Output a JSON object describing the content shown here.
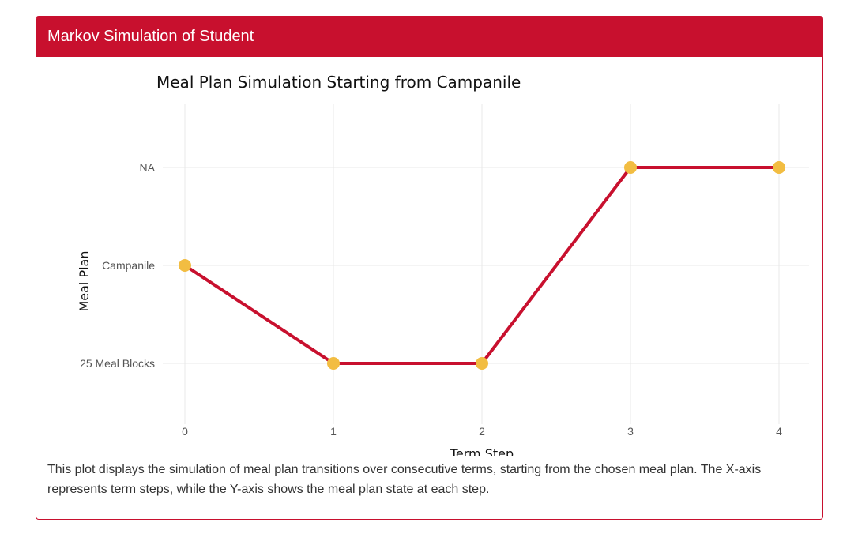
{
  "card": {
    "title": "Markov Simulation of Student"
  },
  "colors": {
    "header": "#c8102e",
    "line": "#c8102e",
    "marker": "#f2bd42",
    "grid": "#e8e8e8"
  },
  "chart_data": {
    "type": "line",
    "title": "Meal Plan Simulation Starting from Campanile",
    "xlabel": "Term Step",
    "ylabel": "Meal Plan",
    "x": [
      0,
      1,
      2,
      3,
      4
    ],
    "y": [
      "Campanile",
      "25 Meal Blocks",
      "25 Meal Blocks",
      "NA",
      "NA"
    ],
    "y_categories": [
      "25 Meal Blocks",
      "Campanile",
      "NA"
    ],
    "x_ticks": [
      "0",
      "1",
      "2",
      "3",
      "4"
    ],
    "xlim": [
      0,
      4
    ],
    "grid": true,
    "legend": "none"
  },
  "caption": "This plot displays the simulation of meal plan transitions over consecutive terms, starting from the chosen meal plan. The X-axis represents term steps, while the Y-axis shows the meal plan state at each step."
}
